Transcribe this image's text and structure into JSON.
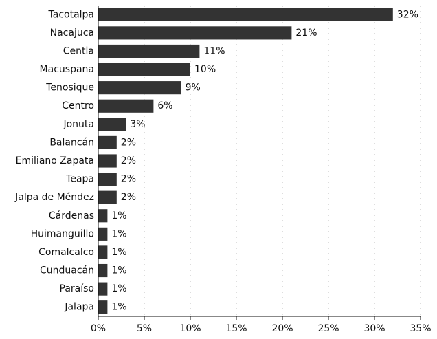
{
  "chart_data": {
    "type": "barh",
    "categories": [
      "Tacotalpa",
      "Nacajuca",
      "Centla",
      "Macuspana",
      "Tenosique",
      "Centro",
      "Jonuta",
      "Balancán",
      "Emiliano Zapata",
      "Teapa",
      "Jalpa de Méndez",
      "Cárdenas",
      "Huimanguillo",
      "Comalcalco",
      "Cunduacán",
      "Paraíso",
      "Jalapa"
    ],
    "values": [
      32,
      21,
      11,
      10,
      9,
      6,
      3,
      2,
      2,
      2,
      2,
      1,
      1,
      1,
      1,
      1,
      1
    ],
    "value_labels": [
      "32%",
      "21%",
      "11%",
      "10%",
      "9%",
      "6%",
      "3%",
      "2%",
      "2%",
      "2%",
      "2%",
      "1%",
      "1%",
      "1%",
      "1%",
      "1%",
      "1%"
    ],
    "color": "#333333",
    "xlim": [
      0,
      35
    ],
    "xticks": [
      {
        "value": 0,
        "label": "0%"
      },
      {
        "value": 5,
        "label": "5%"
      },
      {
        "value": 10,
        "label": "10%"
      },
      {
        "value": 15,
        "label": "15%"
      },
      {
        "value": 20,
        "label": "20%"
      },
      {
        "value": 25,
        "label": "25%"
      },
      {
        "value": 30,
        "label": "30%"
      },
      {
        "value": 35,
        "label": "35%"
      }
    ],
    "grid": true
  }
}
